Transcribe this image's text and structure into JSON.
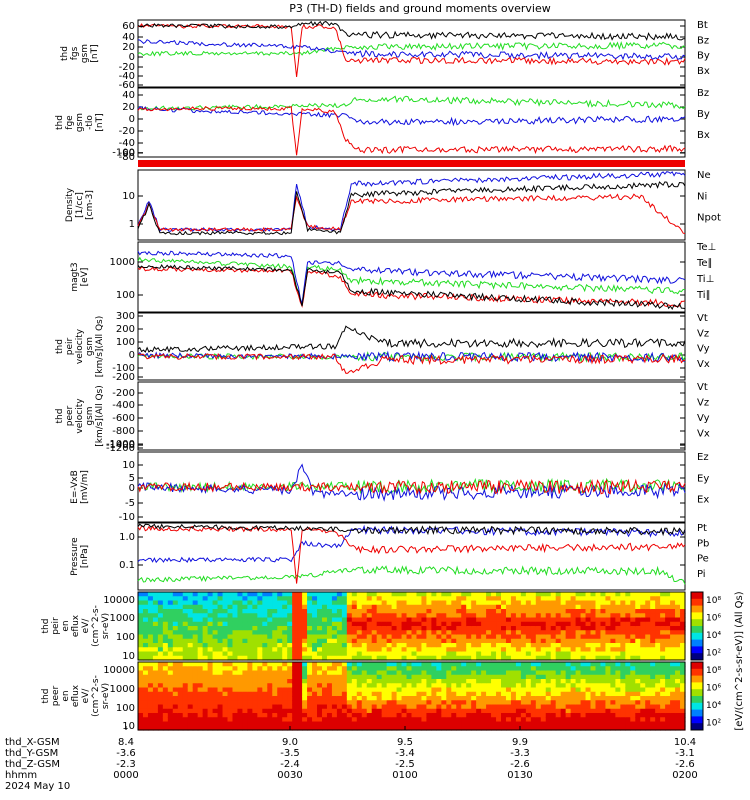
{
  "title": "P3 (TH-D) fields and ground moments overview",
  "colors": {
    "black": "#000000",
    "red": "#ee0000",
    "green": "#22dd22",
    "blue": "#1010dd",
    "cyan": "#00e5e5"
  },
  "panels": [
    {
      "key": "fgs",
      "ylabel": [
        "thd",
        "fgs",
        "gsm",
        "[nT]"
      ],
      "ticks": [
        "60",
        "40",
        "20",
        "0",
        "-20",
        "-40",
        "-60"
      ],
      "ylim": [
        -70,
        70
      ],
      "legend": [
        {
          "text": "Bt",
          "color": "black"
        },
        {
          "text": "Bz",
          "color": "red"
        },
        {
          "text": "By",
          "color": "green"
        },
        {
          "text": "Bx",
          "color": "blue"
        }
      ]
    },
    {
      "key": "fge",
      "ylabel": [
        "thd",
        "fge",
        "gsm",
        "-tlo",
        "[nT]"
      ],
      "ticks": [
        "40",
        "20",
        "0",
        "-20",
        "-40",
        "-60",
        "-80",
        "-100"
      ],
      "ylim": [
        -115,
        55
      ],
      "legend": [
        {
          "text": "Bz",
          "color": "red"
        },
        {
          "text": "By",
          "color": "green"
        },
        {
          "text": "Bx",
          "color": "blue"
        }
      ]
    },
    {
      "key": "density",
      "ylabel": [
        "Density",
        "[1/cc]",
        "[cm-3]"
      ],
      "ticks": [
        "10",
        "1"
      ],
      "scale": "log",
      "legend": [
        {
          "text": "Ne",
          "color": "red"
        },
        {
          "text": "Ni",
          "color": "black"
        },
        {
          "text": "Npot",
          "color": "blue"
        }
      ]
    },
    {
      "key": "temp",
      "ylabel": [
        "magt3",
        "[eV]"
      ],
      "ticks": [
        "1000",
        "100"
      ],
      "scale": "log",
      "legend": [
        {
          "text": "Te⊥",
          "color": "red"
        },
        {
          "text": "Te∥",
          "color": "black"
        },
        {
          "text": "Ti⊥",
          "color": "blue"
        },
        {
          "text": "Ti∥",
          "color": "green"
        }
      ]
    },
    {
      "key": "peir_vel",
      "ylabel": [
        "thd",
        "peir",
        "velocity",
        "gsm",
        "[km/s](All Qs)"
      ],
      "ticks": [
        "300",
        "200",
        "100",
        "0",
        "-100",
        "-200"
      ],
      "ylim": [
        -250,
        300
      ],
      "legend": [
        {
          "text": "Vt",
          "color": "black"
        },
        {
          "text": "Vz",
          "color": "red"
        },
        {
          "text": "Vy",
          "color": "green"
        },
        {
          "text": "Vx",
          "color": "blue"
        }
      ]
    },
    {
      "key": "peer_vel",
      "ylabel": [
        "thd",
        "peer",
        "velocity",
        "gsm",
        "[km/s](All Qs)"
      ],
      "ticks": [
        "-200",
        "-400",
        "-600",
        "-800",
        "-1000",
        "-1200",
        "-1400"
      ],
      "ylim": [
        -1500,
        -100
      ],
      "legend": [
        {
          "text": "Vt",
          "color": "black"
        },
        {
          "text": "Vz",
          "color": "red"
        },
        {
          "text": "Vy",
          "color": "green"
        },
        {
          "text": "Vx",
          "color": "blue"
        }
      ]
    },
    {
      "key": "efield",
      "ylabel": [
        "E=-VxB",
        "[mV/m]"
      ],
      "ticks": [
        "10",
        "5",
        "0",
        "-5",
        "-10"
      ],
      "ylim": [
        -12,
        10
      ],
      "legend": [
        {
          "text": "Ez",
          "color": "red"
        },
        {
          "text": "Ey",
          "color": "green"
        },
        {
          "text": "Ex",
          "color": "blue"
        }
      ]
    },
    {
      "key": "pressure",
      "ylabel": [
        "Pressure",
        "[nPa]"
      ],
      "ticks": [
        "1.0",
        "0.1"
      ],
      "scale": "log",
      "legend": [
        {
          "text": "Pt",
          "color": "black"
        },
        {
          "text": "Pb",
          "color": "red"
        },
        {
          "text": "Pe",
          "color": "green"
        },
        {
          "text": "Pi",
          "color": "blue"
        }
      ]
    },
    {
      "key": "peir_eflux",
      "ylabel": [
        "thd",
        "peir",
        "en",
        "eflux",
        "eV/",
        "(cm^2-s-",
        "sr-eV)"
      ],
      "ticks": [
        "10000",
        "1000",
        "100",
        "10"
      ]
    },
    {
      "key": "peer_eflux",
      "ylabel": [
        "thd",
        "peer",
        "en",
        "eflux",
        "eV/",
        "(cm^2-s-",
        "sr-eV)"
      ],
      "ticks": [
        "10000",
        "1000",
        "100",
        "10"
      ]
    }
  ],
  "colorbar": {
    "ticks": [
      "10⁸",
      "10⁶",
      "10⁴",
      "10²",
      "10⁸",
      "10⁶",
      "10⁴",
      "10²"
    ],
    "label": "[eV/(cm^2-s-sr-eV)] (All Qs)"
  },
  "xaxis": {
    "rows": [
      {
        "label": "thd_X-GSM",
        "values": [
          "8.4",
          "9.0",
          "9.5",
          "9.9",
          "10.4"
        ]
      },
      {
        "label": "thd_Y-GSM",
        "values": [
          "-3.6",
          "-3.5",
          "-3.4",
          "-3.3",
          "-3.1"
        ]
      },
      {
        "label": "thd_Z-GSM",
        "values": [
          "-2.3",
          "-2.4",
          "-2.5",
          "-2.6",
          "-2.6"
        ]
      },
      {
        "label": "hhmm",
        "values": [
          "0000",
          "0030",
          "0100",
          "0130",
          "0200"
        ]
      }
    ],
    "date": "2024 May 10"
  },
  "chart_data": {
    "type": "line",
    "title": "P3 (TH-D) fields and ground moments overview",
    "x": [
      "0000",
      "0030",
      "0100",
      "0130",
      "0200"
    ],
    "series": [
      {
        "name": "Bt",
        "panel": "fgs",
        "values": [
          62,
          60,
          35,
          30,
          32
        ]
      },
      {
        "name": "Bz",
        "panel": "fgs",
        "values": [
          62,
          -55,
          -15,
          -20,
          -18
        ]
      },
      {
        "name": "By",
        "panel": "fgs",
        "values": [
          -5,
          -5,
          15,
          15,
          10
        ]
      },
      {
        "name": "Bx",
        "panel": "fgs",
        "values": [
          20,
          20,
          5,
          0,
          5
        ]
      },
      {
        "name": "Bz",
        "panel": "fge",
        "values": [
          0,
          -100,
          -85,
          -90,
          -75
        ]
      },
      {
        "name": "By",
        "panel": "fge",
        "values": [
          0,
          0,
          25,
          10,
          5
        ]
      },
      {
        "name": "Bx",
        "panel": "fge",
        "values": [
          0,
          0,
          -30,
          -20,
          -20
        ]
      },
      {
        "name": "Ne",
        "panel": "density",
        "values": [
          0.5,
          0.5,
          5,
          8,
          9
        ]
      },
      {
        "name": "Ni",
        "panel": "density",
        "values": [
          0.4,
          0.4,
          20,
          25,
          30
        ]
      },
      {
        "name": "Npot",
        "panel": "density",
        "values": [
          0.6,
          0.6,
          35,
          40,
          45
        ]
      },
      {
        "name": "Ti∥",
        "panel": "temp",
        "values": [
          1500,
          1500,
          200,
          150,
          150
        ]
      },
      {
        "name": "Te∥",
        "panel": "temp",
        "values": [
          700,
          700,
          60,
          45,
          40
        ]
      },
      {
        "name": "Ex",
        "panel": "efield",
        "values": [
          0,
          -2,
          0,
          -1,
          0
        ]
      },
      {
        "name": "Pt",
        "panel": "pressure",
        "values": [
          1.5,
          1.4,
          1.0,
          1.0,
          1.0
        ]
      },
      {
        "name": "Pe",
        "panel": "pressure",
        "values": [
          0.03,
          0.03,
          0.05,
          0.05,
          0.04
        ]
      }
    ]
  }
}
